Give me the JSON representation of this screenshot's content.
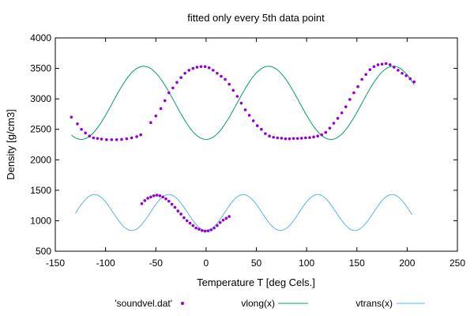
{
  "chart_data": {
    "type": "scatter",
    "title": "fitted only every 5th data point",
    "xlabel": "Temperature T  [deg Cels.]",
    "ylabel": "Density [g/cm3]",
    "xlim": [
      -150,
      250
    ],
    "ylim": [
      500,
      4000
    ],
    "xticks": [
      -150,
      -100,
      -50,
      0,
      50,
      100,
      150,
      200,
      250
    ],
    "yticks": [
      500,
      1000,
      1500,
      2000,
      2500,
      3000,
      3500,
      4000
    ],
    "grid": false,
    "legend": "bottom",
    "series": [
      {
        "name": "'soundvel.dat'",
        "kind": "points",
        "color": "#9400d3",
        "x": [
          -134,
          -128,
          -124,
          -120,
          -116,
          -112,
          -108,
          -104,
          -99,
          -94,
          -89,
          -84,
          -79,
          -74,
          -69,
          -65,
          -55,
          -50,
          -45,
          -41,
          -37,
          -33,
          -29,
          -25,
          -21,
          -17,
          -13,
          -9,
          -5,
          -1,
          3,
          7,
          11,
          15,
          19,
          23,
          27,
          31,
          35,
          39,
          43,
          47,
          51,
          55,
          59,
          63,
          67,
          71,
          75,
          79,
          83,
          87,
          91,
          95,
          99,
          103,
          107,
          111,
          115,
          119,
          123,
          127,
          131,
          135,
          139,
          143,
          147,
          151,
          155,
          159,
          163,
          167,
          171,
          175,
          179,
          183,
          187,
          191,
          195,
          199,
          203,
          207
        ],
        "y": [
          2700,
          2590,
          2500,
          2440,
          2390,
          2360,
          2350,
          2340,
          2330,
          2330,
          2330,
          2335,
          2345,
          2360,
          2380,
          2410,
          2610,
          2720,
          2840,
          2970,
          3100,
          3180,
          3270,
          3350,
          3420,
          3470,
          3500,
          3520,
          3530,
          3530,
          3510,
          3470,
          3420,
          3370,
          3320,
          3240,
          3140,
          3040,
          2930,
          2820,
          2730,
          2640,
          2560,
          2500,
          2430,
          2390,
          2370,
          2360,
          2355,
          2345,
          2345,
          2350,
          2350,
          2355,
          2360,
          2365,
          2375,
          2390,
          2410,
          2450,
          2520,
          2600,
          2680,
          2770,
          2870,
          2990,
          3100,
          3200,
          3320,
          3400,
          3480,
          3530,
          3560,
          3570,
          3580,
          3560,
          3520,
          3470,
          3420,
          3380,
          3330,
          3280
        ]
      },
      {
        "name": "'soundvel.dat'",
        "kind": "points",
        "color": "#9400d3",
        "x": [
          -64,
          -61,
          -58,
          -55,
          -52,
          -49,
          -46,
          -43,
          -40,
          -37,
          -34,
          -31,
          -28,
          -25,
          -22,
          -19,
          -16,
          -13,
          -10,
          -7,
          -4,
          -1,
          2,
          5,
          8,
          11,
          14,
          17,
          20,
          23
        ],
        "y": [
          1280,
          1330,
          1370,
          1390,
          1410,
          1420,
          1410,
          1390,
          1360,
          1320,
          1270,
          1220,
          1160,
          1110,
          1050,
          1000,
          960,
          920,
          880,
          860,
          840,
          830,
          835,
          850,
          880,
          920,
          970,
          1010,
          1040,
          1070
        ]
      },
      {
        "name": "vlong(x)",
        "kind": "line",
        "color": "#009e73",
        "func": {
          "a": 2935,
          "b": 600,
          "c": 0.0506,
          "d": 0.9
        },
        "range": [
          -134,
          207
        ]
      },
      {
        "name": "vtrans(x)",
        "kind": "line",
        "color": "#56b4e9",
        "func": {
          "a": 1135,
          "b": 295,
          "c": 0.0849,
          "d": 1.0
        },
        "range": [
          -130,
          205
        ]
      }
    ],
    "legend_items": [
      {
        "label": "'soundvel.dat'",
        "kind": "points",
        "color": "#9400d3"
      },
      {
        "label": "vlong(x)",
        "kind": "line",
        "color": "#009e73"
      },
      {
        "label": "vtrans(x)",
        "kind": "line",
        "color": "#56b4e9"
      }
    ]
  }
}
